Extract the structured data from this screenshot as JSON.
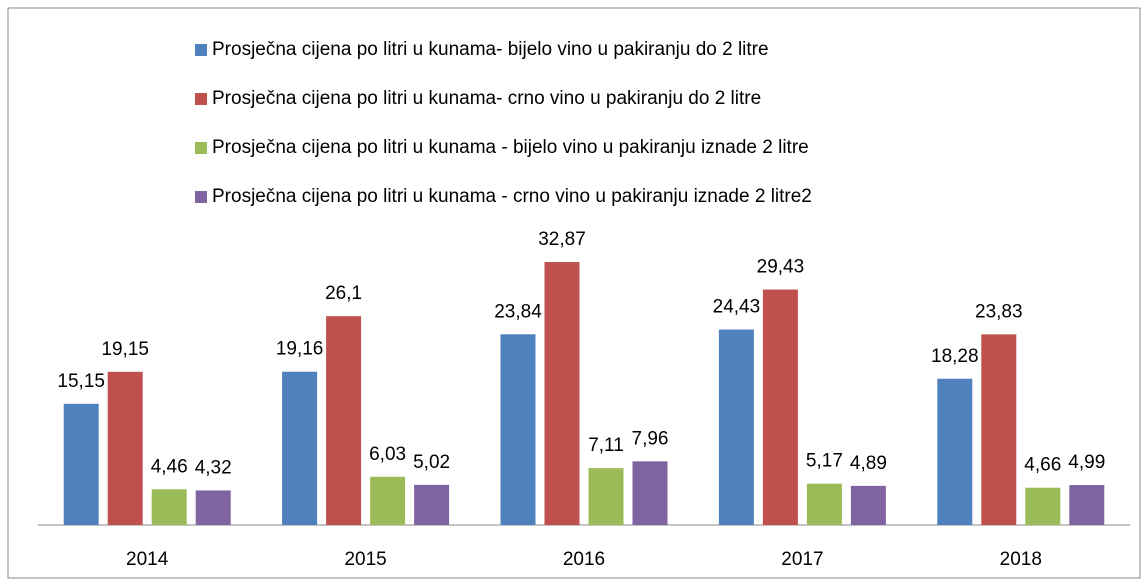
{
  "chart_data": {
    "type": "bar",
    "categories": [
      "2014",
      "2015",
      "2016",
      "2017",
      "2018"
    ],
    "series": [
      {
        "name": "Prosječna cijena po litri u kunama- bijelo vino u pakiranju do 2 litre",
        "color": "#4f81bd",
        "values": [
          15.15,
          19.16,
          23.84,
          24.43,
          18.28
        ],
        "value_labels": [
          "15,15",
          "19,16",
          "23,84",
          "24,43",
          "18,28"
        ]
      },
      {
        "name": "Prosječna cijena po litri u kunama- crno vino u pakiranju do 2 litre",
        "color": "#c0504d",
        "values": [
          19.15,
          26.1,
          32.87,
          29.43,
          23.83
        ],
        "value_labels": [
          "19,15",
          "26,1",
          "32,87",
          "29,43",
          "23,83"
        ]
      },
      {
        "name": "Prosječna cijena po litri u kunama - bijelo vino u pakiranju iznade 2 litre",
        "color": "#9bbb59",
        "values": [
          4.46,
          6.03,
          7.11,
          5.17,
          4.66
        ],
        "value_labels": [
          "4,46",
          "6,03",
          "7,11",
          "5,17",
          "4,66"
        ]
      },
      {
        "name": "Prosječna cijena po litri u kunama - crno vino u pakiranju iznade 2 litre2",
        "color": "#8064a2",
        "values": [
          4.32,
          5.02,
          7.96,
          4.89,
          4.99
        ],
        "value_labels": [
          "4,32",
          "5,02",
          "7,96",
          "4,89",
          "4,99"
        ]
      }
    ],
    "legend": "top"
  }
}
